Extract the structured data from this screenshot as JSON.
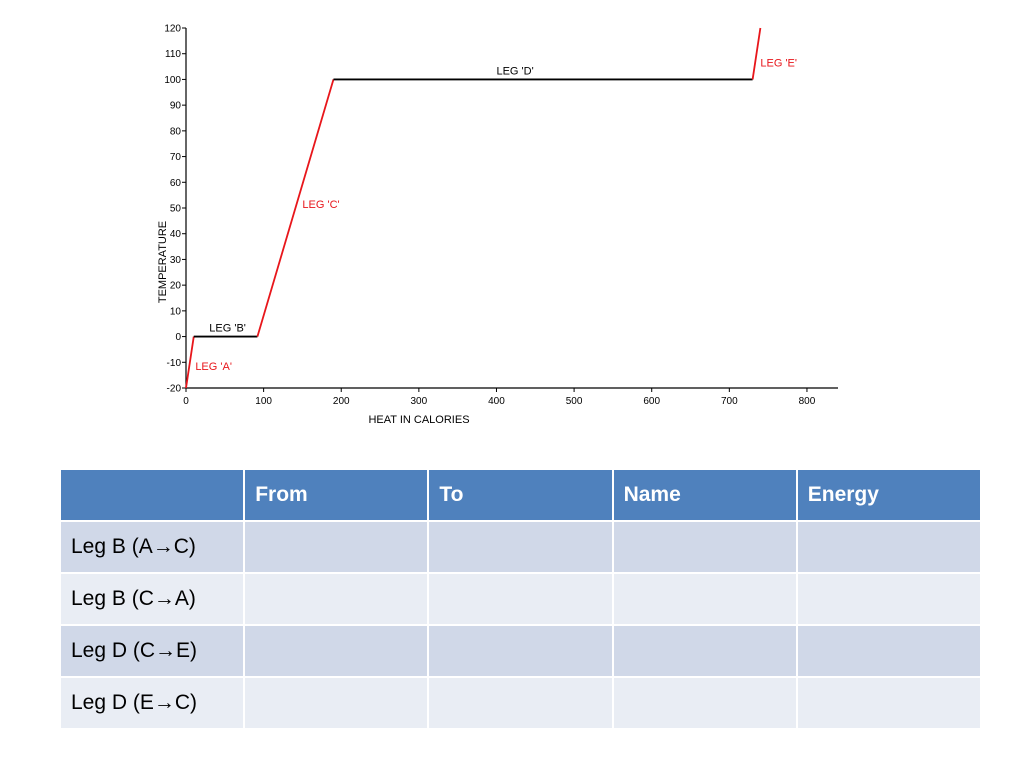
{
  "chart_data": {
    "type": "line",
    "xlabel": "HEAT IN CALORIES",
    "ylabel": "TEMPERATURE",
    "xlim": [
      0,
      840
    ],
    "ylim": [
      -20,
      120
    ],
    "xticks": [
      0,
      100,
      200,
      300,
      400,
      500,
      600,
      700,
      800
    ],
    "yticks": [
      -20,
      -10,
      0,
      10,
      20,
      30,
      40,
      50,
      60,
      70,
      80,
      90,
      100,
      110,
      120
    ],
    "grid": false,
    "segments": [
      {
        "name": "LEG 'A'",
        "color": "#e8161b",
        "points": [
          [
            0,
            -20
          ],
          [
            10,
            0
          ]
        ]
      },
      {
        "name": "LEG 'B'",
        "color": "#000000",
        "points": [
          [
            10,
            0
          ],
          [
            92,
            0
          ]
        ]
      },
      {
        "name": "LEG 'C'",
        "color": "#e8161b",
        "points": [
          [
            92,
            0
          ],
          [
            190,
            100
          ]
        ]
      },
      {
        "name": "LEG 'D'",
        "color": "#000000",
        "points": [
          [
            190,
            100
          ],
          [
            730,
            100
          ]
        ]
      },
      {
        "name": "LEG 'E'",
        "color": "#e8161b",
        "points": [
          [
            730,
            100
          ],
          [
            740,
            120
          ]
        ]
      }
    ],
    "annotations": [
      {
        "text": "LEG 'A'",
        "x": 12,
        "y": -13,
        "color": "#e8161b"
      },
      {
        "text": "LEG 'B'",
        "x": 30,
        "y": 2,
        "color": "#000000"
      },
      {
        "text": "LEG 'C'",
        "x": 150,
        "y": 50,
        "color": "#e8161b"
      },
      {
        "text": "LEG 'D'",
        "x": 400,
        "y": 102,
        "color": "#000000"
      },
      {
        "text": "LEG 'E'",
        "x": 740,
        "y": 105,
        "color": "#e8161b"
      }
    ]
  },
  "table": {
    "headers": [
      "",
      "From",
      "To",
      "Name",
      "Energy"
    ],
    "rows": [
      {
        "label": "Leg B (A→C)",
        "from": "",
        "to": "",
        "name": "",
        "energy": ""
      },
      {
        "label": "Leg B (C→A)",
        "from": "",
        "to": "",
        "name": "",
        "energy": ""
      },
      {
        "label": "Leg D (C→E)",
        "from": "",
        "to": "",
        "name": "",
        "energy": ""
      },
      {
        "label": "Leg D (E→C)",
        "from": "",
        "to": "",
        "name": "",
        "energy": ""
      }
    ]
  },
  "colors": {
    "header_bg": "#4f81bd",
    "row_odd": "#d0d8e8",
    "row_even": "#e9edf4",
    "red_leg": "#e8161b"
  }
}
